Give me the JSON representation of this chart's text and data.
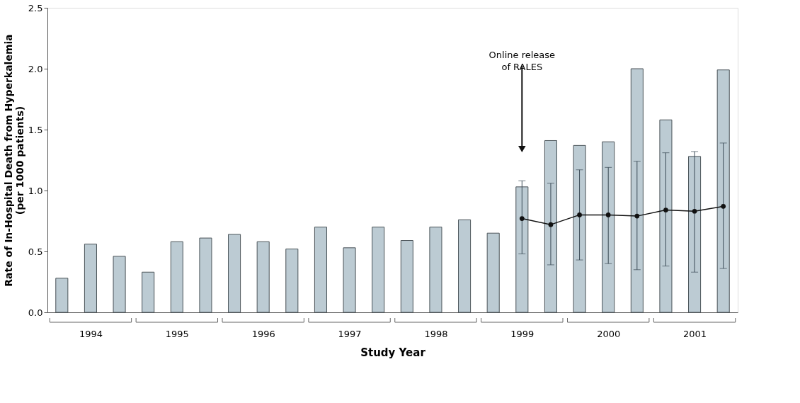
{
  "chart_data": {
    "type": "bar",
    "xlabel": "Study Year",
    "ylabel": "Rate of In-Hospital Death from Hyperkalemia\n(per 1000 patients)",
    "categories": [
      null,
      "1994",
      null,
      null,
      "1995",
      null,
      null,
      "1996",
      null,
      null,
      "1997",
      null,
      null,
      "1998",
      null,
      null,
      "1999",
      null,
      null,
      "2000",
      null,
      null,
      "2001",
      null
    ],
    "series": [
      {
        "color": "#bccbd3",
        "values": [
          0.28,
          0.56,
          0.46,
          0.33,
          0.58,
          0.61,
          0.64,
          0.58,
          0.52,
          0.7,
          0.53,
          0.7,
          0.59,
          0.7,
          0.76,
          0.65,
          1.03,
          1.41,
          1.37,
          1.4,
          2.0,
          1.58,
          1.28,
          1.99
        ]
      },
      {
        "type": "line",
        "color": "#111111",
        "marker": "circle",
        "values": [
          null,
          null,
          null,
          null,
          null,
          null,
          null,
          null,
          null,
          null,
          null,
          null,
          null,
          null,
          null,
          null,
          0.77,
          0.72,
          0.8,
          0.8,
          0.79,
          0.84,
          0.83,
          0.87
        ],
        "errors": [
          null,
          null,
          null,
          null,
          null,
          null,
          null,
          null,
          null,
          null,
          null,
          null,
          null,
          null,
          null,
          null,
          [
            0.48,
            1.08
          ],
          [
            0.39,
            1.06
          ],
          [
            0.43,
            1.17
          ],
          [
            0.4,
            1.19
          ],
          [
            0.35,
            1.24
          ],
          [
            0.38,
            1.31
          ],
          [
            0.33,
            1.32
          ],
          [
            0.36,
            1.39
          ]
        ]
      }
    ],
    "ylim": [
      0,
      2.5
    ],
    "yticks": [
      {
        "value": 0,
        "label": "0.0"
      },
      0.5,
      {
        "value": 1,
        "label": "1.0"
      },
      1.5,
      {
        "value": 2,
        "label": "2.0"
      },
      2.5
    ],
    "annotations": [
      {
        "text": "Online release\nof RALES",
        "x": "1999",
        "y": 1.34
      }
    ],
    "grid": false
  }
}
